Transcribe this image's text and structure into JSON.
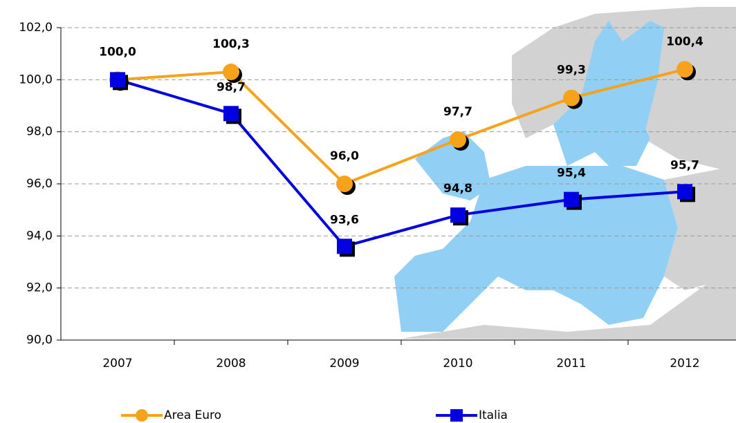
{
  "chart_data": {
    "type": "line",
    "categories": [
      "2007",
      "2008",
      "2009",
      "2010",
      "2011",
      "2012"
    ],
    "series": [
      {
        "name": "Area Euro",
        "color": "#f7a21b",
        "marker": "circle",
        "values": [
          100.0,
          100.3,
          96.0,
          97.7,
          99.3,
          100.4
        ],
        "value_labels": [
          "100,0",
          "100,3",
          "96,0",
          "97,7",
          "99,3",
          "100,4"
        ]
      },
      {
        "name": "Italia",
        "color": "#0000e0",
        "marker": "square",
        "values": [
          100.0,
          98.7,
          93.6,
          94.8,
          95.4,
          95.7
        ],
        "value_labels": [
          "",
          "98,7",
          "93,6",
          "94,8",
          "95,4",
          "95,7"
        ]
      }
    ],
    "ylim": [
      90,
      102
    ],
    "yticks": [
      {
        "value": 90,
        "label": "90,0"
      },
      {
        "value": 92,
        "label": "92,0"
      },
      {
        "value": 94,
        "label": "94,0"
      },
      {
        "value": 96,
        "label": "96,0"
      },
      {
        "value": 98,
        "label": "98,0"
      },
      {
        "value": 100,
        "label": "100,0"
      },
      {
        "value": 102,
        "label": "102,0"
      }
    ],
    "grid": true,
    "legend": "bottom"
  }
}
